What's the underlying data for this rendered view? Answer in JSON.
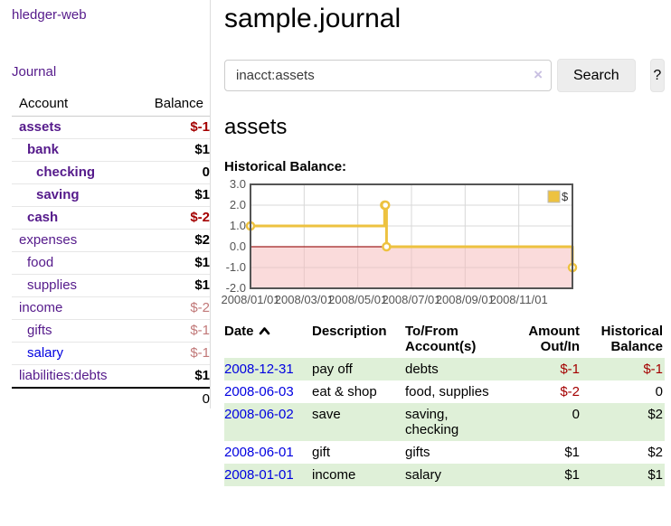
{
  "app": {
    "brand": "hledger-web",
    "nav_journal": "Journal"
  },
  "sidebar": {
    "accounts_header": {
      "account": "Account",
      "balance": "Balance"
    },
    "accounts": [
      {
        "name": "assets",
        "balance": "$-1",
        "level": 0,
        "bold": true,
        "balance_color": "negative"
      },
      {
        "name": "bank",
        "balance": "$1",
        "level": 1,
        "bold": true,
        "balance_color": "normal"
      },
      {
        "name": "checking",
        "balance": "0",
        "level": 2,
        "bold": true,
        "balance_color": "normal"
      },
      {
        "name": "saving",
        "balance": "$1",
        "level": 2,
        "bold": true,
        "balance_color": "normal"
      },
      {
        "name": "cash",
        "balance": "$-2",
        "level": 1,
        "bold": true,
        "balance_color": "negative"
      },
      {
        "name": "expenses",
        "balance": "$2",
        "level": 0,
        "bold": false,
        "balance_color": "normal"
      },
      {
        "name": "food",
        "balance": "$1",
        "level": 1,
        "bold": false,
        "balance_color": "normal"
      },
      {
        "name": "supplies",
        "balance": "$1",
        "level": 1,
        "bold": false,
        "balance_color": "normal"
      },
      {
        "name": "income",
        "balance": "$-2",
        "level": 0,
        "bold": false,
        "balance_color": "muted-negative"
      },
      {
        "name": "gifts",
        "balance": "$-1",
        "level": 1,
        "bold": false,
        "balance_color": "muted-negative"
      },
      {
        "name": "salary",
        "balance": "$-1",
        "level": 1,
        "bold": false,
        "balance_color": "muted-negative",
        "link_color": "blue"
      },
      {
        "name": "liabilities:debts",
        "balance": "$1",
        "level": 0,
        "bold": false,
        "balance_color": "normal"
      }
    ],
    "total": "0"
  },
  "header": {
    "title": "sample.journal"
  },
  "search": {
    "value": "inacct:assets",
    "clear_icon": "×",
    "button": "Search",
    "help_button": "?"
  },
  "main": {
    "account_heading": "assets",
    "chart_title": "Historical Balance:"
  },
  "chart_data": {
    "type": "line",
    "title": "Historical Balance:",
    "legend": "$",
    "legend_position": "top-right",
    "grid": true,
    "ylim": [
      -2,
      3
    ],
    "y_ticks": [
      "3.0",
      "2.0",
      "1.0",
      "0.0",
      "-1.0",
      "-2.0"
    ],
    "x_ticks": [
      "2008/01/01",
      "2008/03/01",
      "2008/05/01",
      "2008/07/01",
      "2008/09/01",
      "2008/11/01"
    ],
    "x_range_months": 12,
    "series": [
      {
        "name": "$",
        "color": "#edc240",
        "style": "step-with-markers",
        "points": [
          {
            "date": "2008-01-01",
            "x_months": 0,
            "y": 1
          },
          {
            "date": "2008-06-01",
            "x_months": 5.0,
            "y": 2
          },
          {
            "date": "2008-06-02",
            "x_months": 5.03,
            "y": 2
          },
          {
            "date": "2008-06-03",
            "x_months": 5.07,
            "y": 0
          },
          {
            "date": "2008-12-31",
            "x_months": 12,
            "y": -1
          }
        ]
      }
    ],
    "negative_region_color": "#f5b8b8",
    "zero_line_color": "#a02020",
    "gridline_color": "#d8d8d8",
    "border_color": "#545454"
  },
  "register": {
    "columns": {
      "date": "Date",
      "description": "Description",
      "accounts": "To/From Account(s)",
      "amount": "Amount Out/In",
      "balance": "Historical Balance"
    },
    "sort": "date-ascending-indicator",
    "rows": [
      {
        "date": "2008-12-31",
        "description": "pay off",
        "accounts": "debts",
        "amount": "$-1",
        "amount_negative": true,
        "balance": "$-1",
        "balance_negative": true
      },
      {
        "date": "2008-06-03",
        "description": "eat & shop",
        "accounts": "food, supplies",
        "amount": "$-2",
        "amount_negative": true,
        "balance": "0",
        "balance_negative": false
      },
      {
        "date": "2008-06-02",
        "description": "save",
        "accounts": "saving, checking",
        "amount": "0",
        "amount_negative": false,
        "balance": "$2",
        "balance_negative": false
      },
      {
        "date": "2008-06-01",
        "description": "gift",
        "accounts": "gifts",
        "amount": "$1",
        "amount_negative": false,
        "balance": "$2",
        "balance_negative": false
      },
      {
        "date": "2008-01-01",
        "description": "income",
        "accounts": "salary",
        "amount": "$1",
        "amount_negative": false,
        "balance": "$1",
        "balance_negative": false
      }
    ]
  },
  "colors": {
    "link_purple": "#551a8b",
    "link_blue": "#0000e0",
    "negative_strong": "#a40000",
    "negative_muted": "#c17878",
    "row_stripe_green": "#dff0d8",
    "series_gold": "#edc240",
    "negative_region_pink": "#fbdcdc",
    "zero_line_red": "#a02020"
  }
}
